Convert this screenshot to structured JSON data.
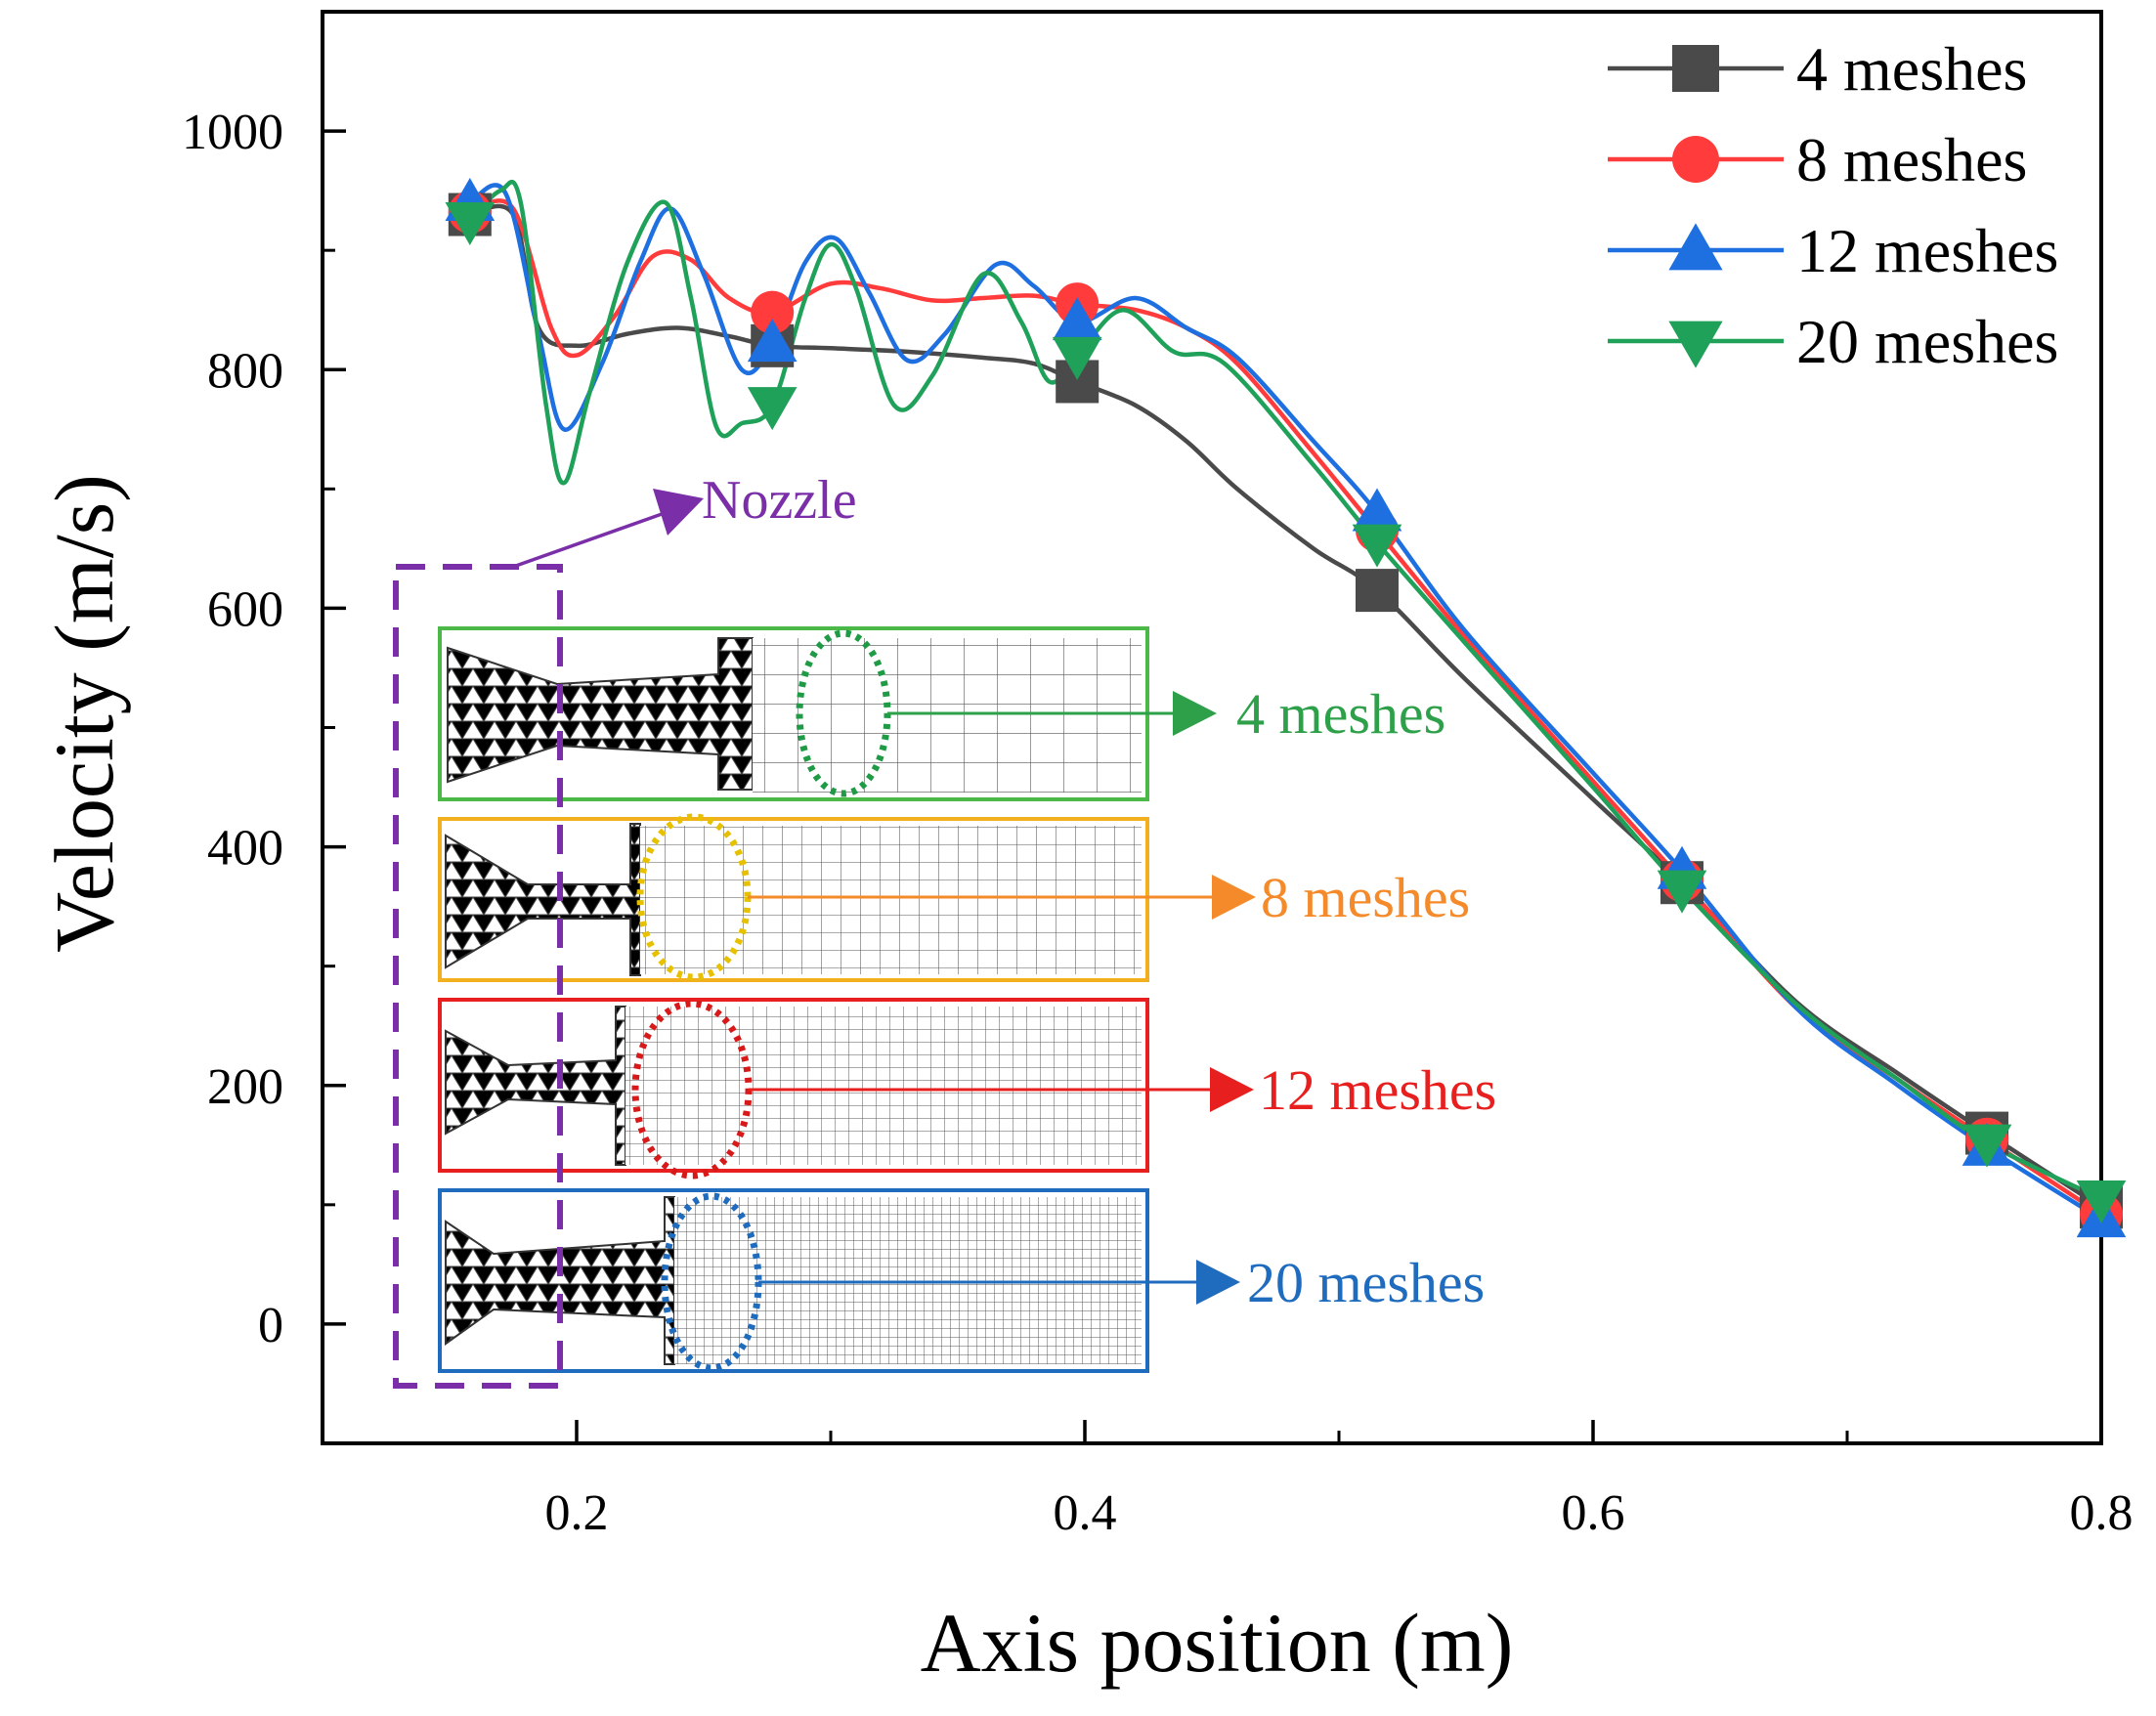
{
  "chart_data": {
    "type": "line",
    "title": "",
    "xlabel": "Axis position (m)",
    "ylabel": "Velocity (m/s)",
    "xlim": [
      0.1,
      0.8
    ],
    "ylim": [
      -100,
      1100
    ],
    "x_ticks": [
      0.2,
      0.4,
      0.6,
      0.8
    ],
    "x_tick_labels": [
      "0.2",
      "0.4",
      "0.6",
      "0.8"
    ],
    "y_ticks": [
      0,
      200,
      400,
      600,
      800,
      1000
    ],
    "y_tick_labels": [
      "0",
      "200",
      "400",
      "600",
      "800",
      "1000"
    ],
    "legend_position": "top-right",
    "series": [
      {
        "name": "4 meshes",
        "color": "#4a4a4a",
        "marker": "square",
        "markers": [
          [
            0.158,
            930
          ],
          [
            0.277,
            820
          ],
          [
            0.397,
            790
          ],
          [
            0.515,
            615
          ],
          [
            0.635,
            370
          ],
          [
            0.755,
            160
          ],
          [
            0.8,
            98
          ]
        ],
        "curve": [
          [
            0.158,
            930
          ],
          [
            0.175,
            930
          ],
          [
            0.185,
            835
          ],
          [
            0.2,
            820
          ],
          [
            0.22,
            830
          ],
          [
            0.24,
            835
          ],
          [
            0.26,
            828
          ],
          [
            0.277,
            820
          ],
          [
            0.3,
            818
          ],
          [
            0.33,
            815
          ],
          [
            0.36,
            810
          ],
          [
            0.38,
            805
          ],
          [
            0.397,
            790
          ],
          [
            0.42,
            770
          ],
          [
            0.44,
            740
          ],
          [
            0.46,
            700
          ],
          [
            0.49,
            650
          ],
          [
            0.515,
            615
          ],
          [
            0.55,
            540
          ],
          [
            0.6,
            440
          ],
          [
            0.635,
            370
          ],
          [
            0.68,
            270
          ],
          [
            0.72,
            210
          ],
          [
            0.755,
            160
          ],
          [
            0.8,
            98
          ]
        ]
      },
      {
        "name": "8 meshes",
        "color": "#ff3b3b",
        "marker": "circle",
        "markers": [
          [
            0.158,
            932
          ],
          [
            0.277,
            848
          ],
          [
            0.397,
            855
          ],
          [
            0.515,
            665
          ],
          [
            0.635,
            372
          ],
          [
            0.755,
            155
          ],
          [
            0.8,
            92
          ]
        ],
        "curve": [
          [
            0.158,
            932
          ],
          [
            0.175,
            935
          ],
          [
            0.19,
            835
          ],
          [
            0.2,
            812
          ],
          [
            0.215,
            845
          ],
          [
            0.23,
            895
          ],
          [
            0.245,
            892
          ],
          [
            0.26,
            860
          ],
          [
            0.277,
            848
          ],
          [
            0.3,
            872
          ],
          [
            0.32,
            868
          ],
          [
            0.34,
            858
          ],
          [
            0.36,
            860
          ],
          [
            0.38,
            862
          ],
          [
            0.397,
            855
          ],
          [
            0.42,
            850
          ],
          [
            0.44,
            835
          ],
          [
            0.46,
            805
          ],
          [
            0.49,
            730
          ],
          [
            0.515,
            665
          ],
          [
            0.55,
            575
          ],
          [
            0.6,
            455
          ],
          [
            0.635,
            372
          ],
          [
            0.68,
            265
          ],
          [
            0.72,
            205
          ],
          [
            0.755,
            155
          ],
          [
            0.8,
            92
          ]
        ]
      },
      {
        "name": "12 meshes",
        "color": "#1e6fe0",
        "marker": "triangle-up",
        "markers": [
          [
            0.158,
            940
          ],
          [
            0.277,
            822
          ],
          [
            0.397,
            840
          ],
          [
            0.515,
            680
          ],
          [
            0.635,
            380
          ],
          [
            0.755,
            148
          ],
          [
            0.8,
            88
          ]
        ],
        "curve": [
          [
            0.158,
            940
          ],
          [
            0.172,
            948
          ],
          [
            0.185,
            830
          ],
          [
            0.195,
            750
          ],
          [
            0.21,
            805
          ],
          [
            0.225,
            890
          ],
          [
            0.237,
            935
          ],
          [
            0.25,
            880
          ],
          [
            0.265,
            800
          ],
          [
            0.277,
            822
          ],
          [
            0.29,
            890
          ],
          [
            0.302,
            910
          ],
          [
            0.315,
            865
          ],
          [
            0.33,
            808
          ],
          [
            0.345,
            830
          ],
          [
            0.365,
            888
          ],
          [
            0.38,
            870
          ],
          [
            0.397,
            840
          ],
          [
            0.42,
            860
          ],
          [
            0.44,
            835
          ],
          [
            0.46,
            810
          ],
          [
            0.49,
            740
          ],
          [
            0.515,
            680
          ],
          [
            0.55,
            580
          ],
          [
            0.6,
            462
          ],
          [
            0.635,
            380
          ],
          [
            0.68,
            265
          ],
          [
            0.72,
            200
          ],
          [
            0.755,
            148
          ],
          [
            0.8,
            88
          ]
        ]
      },
      {
        "name": "20 meshes",
        "color": "#1fa15a",
        "marker": "triangle-down",
        "markers": [
          [
            0.158,
            925
          ],
          [
            0.277,
            770
          ],
          [
            0.397,
            812
          ],
          [
            0.515,
            655
          ],
          [
            0.635,
            365
          ],
          [
            0.755,
            152
          ],
          [
            0.8,
            105
          ]
        ],
        "curve": [
          [
            0.158,
            925
          ],
          [
            0.17,
            950
          ],
          [
            0.178,
            940
          ],
          [
            0.188,
            770
          ],
          [
            0.195,
            705
          ],
          [
            0.205,
            780
          ],
          [
            0.22,
            890
          ],
          [
            0.235,
            940
          ],
          [
            0.245,
            860
          ],
          [
            0.255,
            752
          ],
          [
            0.265,
            755
          ],
          [
            0.277,
            770
          ],
          [
            0.29,
            860
          ],
          [
            0.3,
            905
          ],
          [
            0.31,
            868
          ],
          [
            0.325,
            770
          ],
          [
            0.34,
            795
          ],
          [
            0.36,
            880
          ],
          [
            0.375,
            840
          ],
          [
            0.386,
            790
          ],
          [
            0.397,
            812
          ],
          [
            0.415,
            850
          ],
          [
            0.435,
            815
          ],
          [
            0.455,
            805
          ],
          [
            0.49,
            720
          ],
          [
            0.515,
            655
          ],
          [
            0.55,
            570
          ],
          [
            0.6,
            450
          ],
          [
            0.635,
            365
          ],
          [
            0.68,
            268
          ],
          [
            0.72,
            205
          ],
          [
            0.755,
            152
          ],
          [
            0.8,
            105
          ]
        ]
      }
    ],
    "annotations": {
      "nozzle_label": "Nozzle",
      "nozzle_color": "#7a2ea8",
      "insets": [
        {
          "label": "4 meshes",
          "color": "#4cb848",
          "arrow_color": "#2ea04a",
          "ellipse_color": "#1f9a45"
        },
        {
          "label": "8 meshes",
          "color": "#f2b01e",
          "arrow_color": "#f58a2a",
          "ellipse_color": "#e7c000"
        },
        {
          "label": "12 meshes",
          "color": "#e81f1f",
          "arrow_color": "#e81f1f",
          "ellipse_color": "#d81919"
        },
        {
          "label": "20 meshes",
          "color": "#1f6bbd",
          "arrow_color": "#1f6bbd",
          "ellipse_color": "#1f6bbd"
        }
      ]
    }
  }
}
